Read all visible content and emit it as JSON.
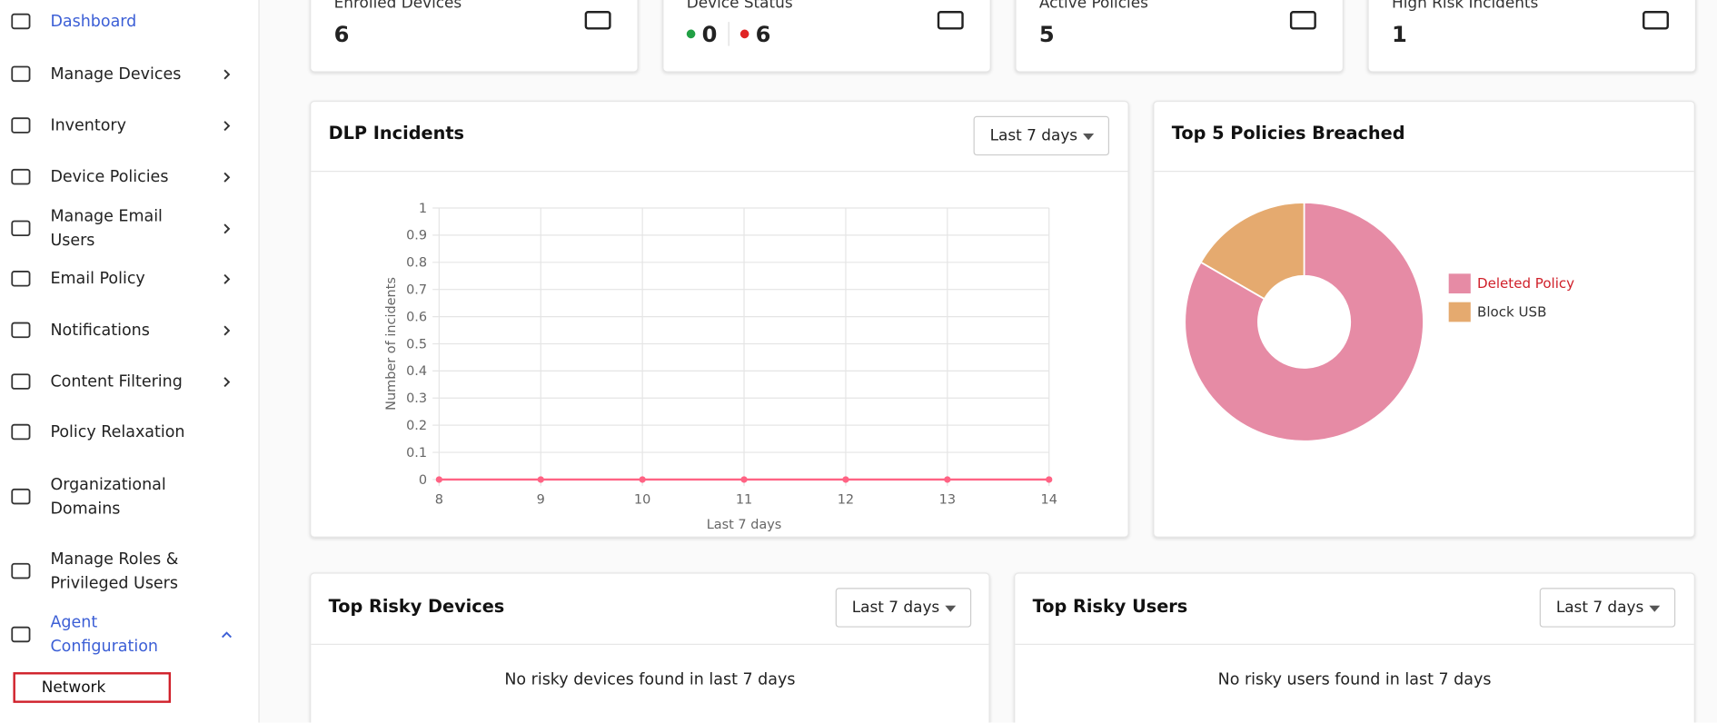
{
  "sidebar": {
    "items": [
      {
        "label": "Dashboard",
        "active": true
      },
      {
        "label": "Manage Devices",
        "has_submenu": true
      },
      {
        "label": "Inventory",
        "has_submenu": true
      },
      {
        "label": "Device Policies",
        "has_submenu": true
      },
      {
        "label": "Manage Email Users",
        "has_submenu": true
      },
      {
        "label": "Email Policy",
        "has_submenu": true
      },
      {
        "label": "Notifications",
        "has_submenu": true
      },
      {
        "label": "Content Filtering",
        "has_submenu": true
      },
      {
        "label": "Policy Relaxation"
      },
      {
        "label": "Organizational Domains"
      },
      {
        "label": "Manage Roles & Privileged Users"
      },
      {
        "label": "Agent Configuration",
        "active": true,
        "has_submenu": true,
        "expanded": true
      }
    ],
    "submenu": [
      "Network"
    ]
  },
  "stats": [
    {
      "label": "Enrolled Devices",
      "value": 6
    },
    {
      "label": "Device Status",
      "online": 0,
      "offline": 6
    },
    {
      "label": "Active Policies",
      "value": 5
    },
    {
      "label": "High Risk Incidents",
      "value": 1
    }
  ],
  "filters": {
    "dlp": "Last 7 days"
  },
  "chart_data": [
    {
      "type": "line",
      "title": "DLP Incidents",
      "x": [
        8,
        9,
        10,
        11,
        12,
        13,
        14
      ],
      "series": [
        {
          "color": "#ff6384",
          "values": [
            0,
            0,
            0,
            0,
            0,
            0,
            0
          ]
        }
      ],
      "xlim": [
        8,
        14
      ],
      "xticks": [
        8,
        9,
        10,
        11,
        12,
        13,
        14
      ],
      "ylim": [
        0,
        1
      ],
      "yticks": [
        0,
        0.1,
        0.2,
        0.3,
        0.4,
        0.5,
        0.6,
        0.7,
        0.8,
        0.9,
        1
      ],
      "x_label": "Last 7 days",
      "y_label": "Number of incidents",
      "grid": true
    },
    {
      "type": "pie",
      "title": "Top 5 Policies Breached",
      "categories": [
        "Deleted Policy",
        "Block USB"
      ],
      "values": [
        5,
        1
      ],
      "colors": [
        "#e68ba5",
        "#e5aa6f"
      ],
      "donut": true,
      "legend": "right"
    }
  ],
  "panels": [
    {
      "title": "Top Risky Devices",
      "filter": "Last 7 days",
      "empty": "No risky devices found in last 7 days"
    },
    {
      "title": "Top Risky Users",
      "filter": "Last 7 days",
      "empty": "No risky users found in last 7 days"
    }
  ]
}
